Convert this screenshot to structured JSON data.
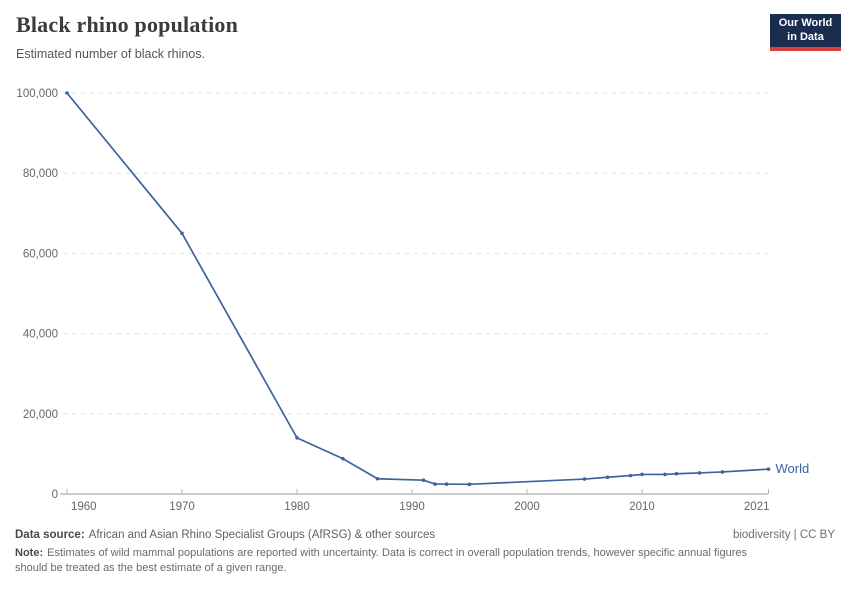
{
  "header": {
    "title": "Black rhino population",
    "subtitle": "Estimated number of black rhinos.",
    "logo": {
      "line1": "Our World",
      "line2": "in Data"
    }
  },
  "chart_data": {
    "type": "line",
    "title": "Black rhino population",
    "subtitle": "Estimated number of black rhinos.",
    "xlabel": "",
    "ylabel": "",
    "xlim": [
      1960,
      2021
    ],
    "ylim": [
      0,
      100000
    ],
    "x_ticks": [
      1960,
      1970,
      1980,
      1990,
      2000,
      2010,
      2021
    ],
    "y_ticks": [
      0,
      20000,
      40000,
      60000,
      80000,
      100000
    ],
    "grid": "horizontal-dashed",
    "legend_position": "end-of-line-label",
    "series": [
      {
        "name": "World",
        "color": "#3d639d",
        "points": [
          [
            1960,
            100000
          ],
          [
            1970,
            65000
          ],
          [
            1980,
            14000
          ],
          [
            1984,
            8800
          ],
          [
            1987,
            3800
          ],
          [
            1991,
            3450
          ],
          [
            1992,
            2475
          ],
          [
            1993,
            2475
          ],
          [
            1995,
            2410
          ],
          [
            2005,
            3726
          ],
          [
            2007,
            4180
          ],
          [
            2009,
            4600
          ],
          [
            2010,
            4880
          ],
          [
            2012,
            4880
          ],
          [
            2013,
            5055
          ],
          [
            2015,
            5250
          ],
          [
            2017,
            5500
          ],
          [
            2021,
            6195
          ]
        ]
      }
    ]
  },
  "footer": {
    "datasource_label": "Data source:",
    "datasource_text": "African and Asian Rhino Specialist Groups (AfRSG) & other sources",
    "license": "biodiversity | CC BY",
    "note_label": "Note:",
    "note_text": "Estimates of wild mammal populations are reported with uncertainty. Data is correct in overall population trends, however specific annual figures should be treated as the best estimate of a given range."
  },
  "colors": {
    "line_blue": "#3d639d",
    "logo_navy": "#1a2d50",
    "logo_red": "#d8403b",
    "gridline": "#e2e2e2",
    "axis_line": "#9a9a9a",
    "axis_text": "#666666",
    "title_text": "#3b3b3b",
    "subtitle_text": "#555555",
    "footer_text": "#616161"
  }
}
